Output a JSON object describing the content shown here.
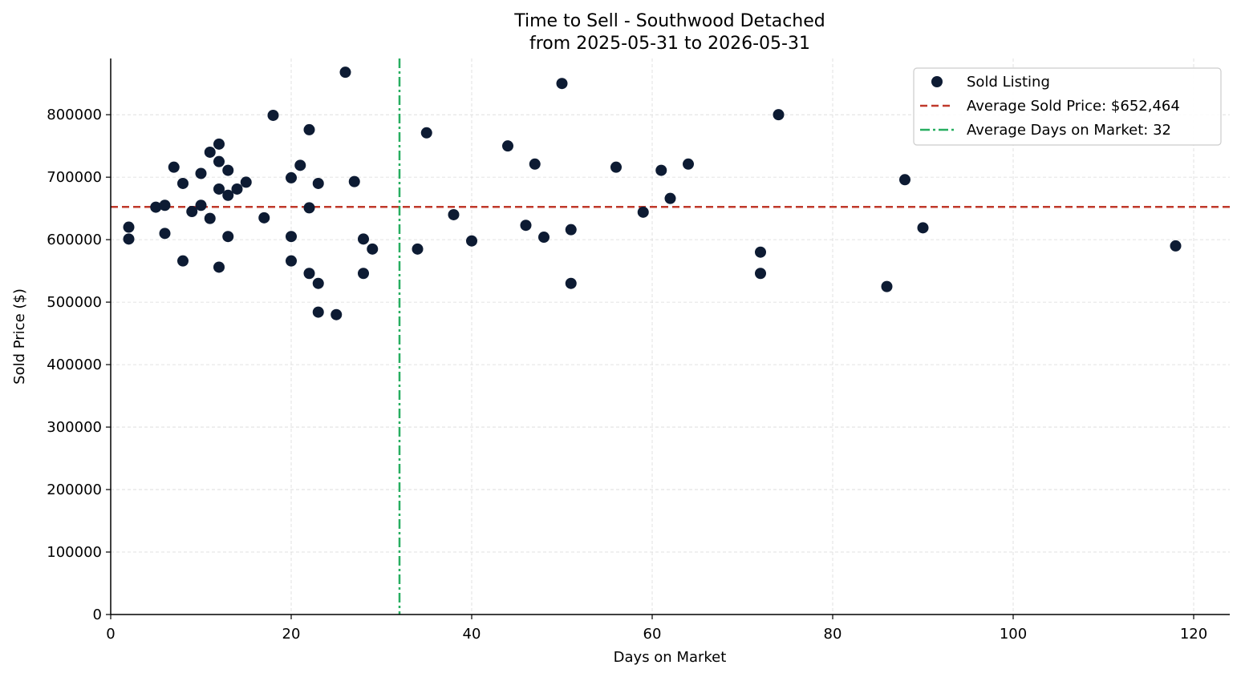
{
  "chart_data": {
    "type": "scatter",
    "title": "Time to Sell - Southwood Detached",
    "subtitle": "from 2025-05-31 to 2026-05-31",
    "xlabel": "Days on Market",
    "ylabel": "Sold Price ($)",
    "xlim": [
      0,
      124
    ],
    "ylim": [
      0,
      890000
    ],
    "xticks": [
      0,
      20,
      40,
      60,
      80,
      100,
      120
    ],
    "yticks": [
      0,
      100000,
      200000,
      300000,
      400000,
      500000,
      600000,
      700000,
      800000
    ],
    "grid": true,
    "legend_position": "top-right",
    "colors": {
      "points": "#0d1b33",
      "avg_price_line": "#c0392b",
      "avg_days_line": "#27ae60",
      "grid": "#d9d9d9"
    },
    "series": [
      {
        "name": "Sold Listing",
        "points": [
          [
            2,
            620000
          ],
          [
            2,
            601000
          ],
          [
            5,
            652000
          ],
          [
            6,
            655000
          ],
          [
            6,
            610000
          ],
          [
            7,
            716000
          ],
          [
            8,
            690000
          ],
          [
            8,
            566000
          ],
          [
            9,
            645000
          ],
          [
            10,
            706000
          ],
          [
            10,
            655000
          ],
          [
            11,
            740000
          ],
          [
            11,
            634000
          ],
          [
            12,
            753000
          ],
          [
            12,
            725000
          ],
          [
            12,
            681000
          ],
          [
            12,
            556000
          ],
          [
            13,
            711000
          ],
          [
            13,
            671000
          ],
          [
            13,
            605000
          ],
          [
            14,
            681000
          ],
          [
            15,
            692000
          ],
          [
            17,
            635000
          ],
          [
            18,
            799000
          ],
          [
            20,
            699000
          ],
          [
            20,
            605000
          ],
          [
            20,
            566000
          ],
          [
            21,
            719000
          ],
          [
            22,
            776000
          ],
          [
            22,
            651000
          ],
          [
            22,
            546000
          ],
          [
            23,
            690000
          ],
          [
            23,
            530000
          ],
          [
            23,
            484000
          ],
          [
            25,
            480000
          ],
          [
            26,
            868000
          ],
          [
            27,
            693000
          ],
          [
            28,
            601000
          ],
          [
            28,
            546000
          ],
          [
            29,
            585000
          ],
          [
            34,
            585000
          ],
          [
            35,
            771000
          ],
          [
            38,
            640000
          ],
          [
            40,
            598000
          ],
          [
            44,
            750000
          ],
          [
            46,
            623000
          ],
          [
            47,
            721000
          ],
          [
            48,
            604000
          ],
          [
            50,
            850000
          ],
          [
            51,
            616000
          ],
          [
            51,
            530000
          ],
          [
            56,
            716000
          ],
          [
            59,
            644000
          ],
          [
            61,
            711000
          ],
          [
            62,
            666000
          ],
          [
            64,
            721000
          ],
          [
            72,
            580000
          ],
          [
            72,
            546000
          ],
          [
            74,
            800000
          ],
          [
            86,
            525000
          ],
          [
            88,
            696000
          ],
          [
            90,
            619000
          ],
          [
            118,
            590000
          ]
        ]
      }
    ],
    "average_sold_price": 652464,
    "average_days_on_market": 32,
    "legend": {
      "points_label": "Sold Listing",
      "avg_price_label": "Average Sold Price: $652,464",
      "avg_days_label": "Average Days on Market: 32"
    }
  }
}
